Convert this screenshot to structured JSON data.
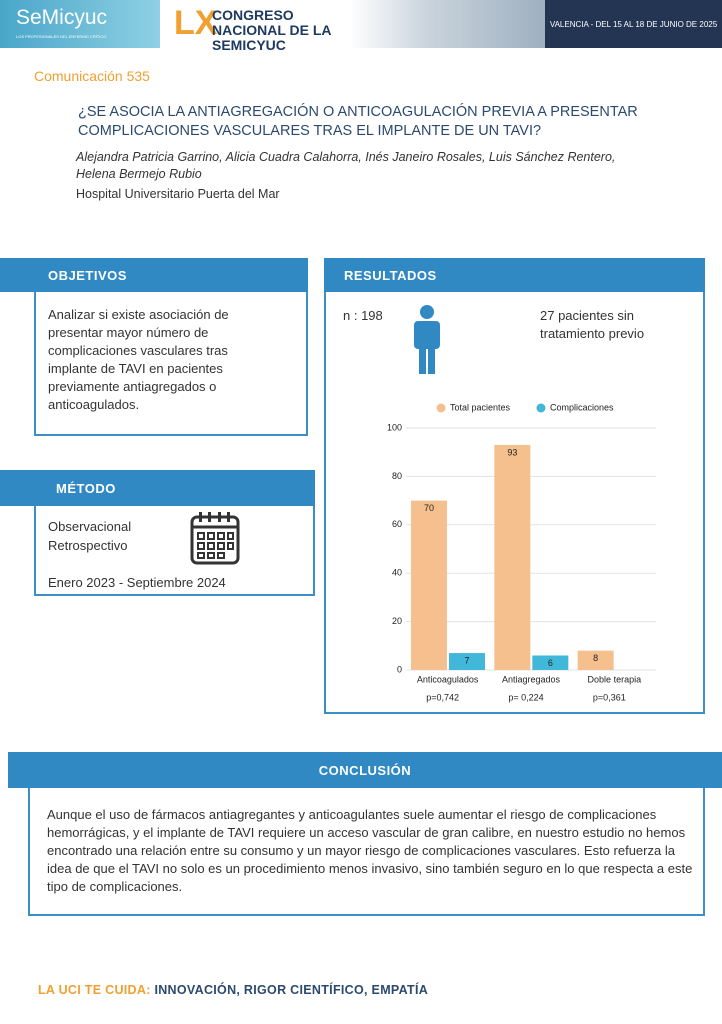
{
  "header": {
    "logo": "SeMicyuc",
    "logo_tagline": "LOS PROFESIONALES DEL ENFERMO CRÍTICO",
    "edition": "LX",
    "congress": "CONGRESO NACIONAL DE LA SEMICYUC",
    "dates": "VALENCIA - DEL 15 AL 18 DE JUNIO DE 2025"
  },
  "communication": "Comunicación 535",
  "title": "¿SE ASOCIA LA ANTIAGREGACIÓN O ANTICOAGULACIÓN PREVIA A PRESENTAR COMPLICACIONES VASCULARES TRAS EL IMPLANTE DE UN TAVI?",
  "authors": "Alejandra Patricia Garrino, Alicia Cuadra Calahorra, Inés Janeiro Rosales, Luis Sánchez Rentero, Helena Bermejo Rubio",
  "affiliation": "Hospital Universitario Puerta del Mar",
  "objetivos": {
    "heading": "OBJETIVOS",
    "text": "Analizar si existe asociación de presentar mayor número de complicaciones vasculares tras implante de TAVI en pacientes previamente antiagregados o anticoagulados."
  },
  "resultados": {
    "heading": "RESULTADOS",
    "n": "n : 198",
    "untreated": "27 pacientes sin tratamiento previo"
  },
  "metodo": {
    "heading": "MÉTODO",
    "design": [
      "Observacional",
      "Retrospectivo"
    ],
    "period": "Enero 2023 - Septiembre 2024"
  },
  "conclusion": {
    "heading": "CONCLUSIÓN",
    "text": "Aunque el uso de fármacos antiagregantes y anticoagulantes suele aumentar el riesgo de complicaciones hemorrágicas, y el implante de TAVI requiere un acceso vascular de gran calibre, en nuestro estudio no hemos encontrado una relación entre su consumo y un mayor riesgo de complicaciones vasculares. Esto refuerza la idea de que el TAVI no solo es un procedimiento menos invasivo, sino también seguro en lo que respecta a este tipo de complicaciones."
  },
  "footer": {
    "lead": "LA UCI TE CUIDA:",
    "text": "INNOVACIÓN, RIGOR CIENTÍFICO, EMPATÍA"
  },
  "chart_data": {
    "type": "bar",
    "categories": [
      "Anticoagulados",
      "Antiagregados",
      "Doble terapia"
    ],
    "series": [
      {
        "name": "Total pacientes",
        "color": "#f6c08e",
        "values": [
          70,
          93,
          8
        ]
      },
      {
        "name": "Complicaciones",
        "color": "#41b7d9",
        "values": [
          7,
          6,
          null
        ]
      }
    ],
    "annotations": [
      "p=0,742",
      "p= 0,224",
      "p=0,361"
    ],
    "ylim": [
      0,
      100
    ],
    "yticks": [
      0,
      20,
      40,
      60,
      80,
      100
    ],
    "grid": true,
    "legend": "top"
  }
}
